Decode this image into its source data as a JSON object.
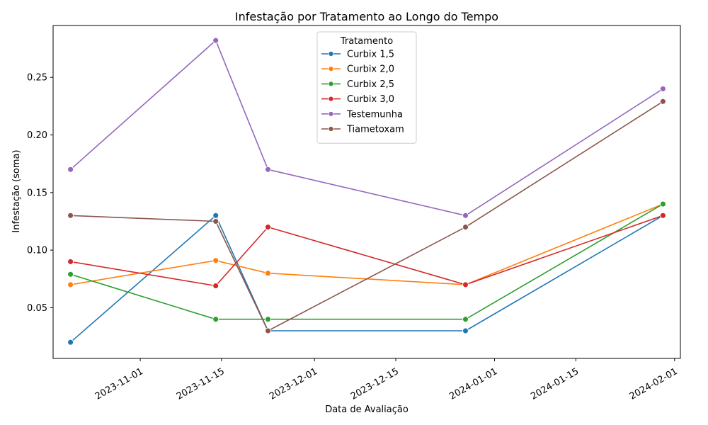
{
  "chart_data": {
    "type": "line",
    "title": "Infestação por Tratamento ao Longo do Tempo",
    "xlabel": "Data de Avaliação",
    "ylabel": "Infestação (soma)",
    "x": [
      "2023-10-20",
      "2023-11-14",
      "2023-11-23",
      "2023-12-27",
      "2024-01-30"
    ],
    "x_ticks": [
      "2023-11-01",
      "2023-11-15",
      "2023-12-01",
      "2023-12-15",
      "2024-01-01",
      "2024-01-15",
      "2024-02-01"
    ],
    "x_range": [
      "2023-10-17",
      "2024-02-02"
    ],
    "y_ticks": [
      0.05,
      0.1,
      0.15,
      0.2,
      0.25
    ],
    "ylim": [
      0.006,
      0.295
    ],
    "legend": {
      "title": "Tratamento",
      "position": "top-center"
    },
    "grid": false,
    "series": [
      {
        "name": "Curbix 1,5",
        "color": "#1f77b4",
        "values": [
          0.02,
          0.13,
          0.03,
          0.03,
          0.13
        ]
      },
      {
        "name": "Curbix 2,0",
        "color": "#ff7f0e",
        "values": [
          0.07,
          0.091,
          0.08,
          0.07,
          0.14
        ]
      },
      {
        "name": "Curbix 2,5",
        "color": "#2ca02c",
        "values": [
          0.079,
          0.04,
          0.04,
          0.04,
          0.14
        ]
      },
      {
        "name": "Curbix 3,0",
        "color": "#d62728",
        "values": [
          0.09,
          0.069,
          0.12,
          0.07,
          0.13
        ]
      },
      {
        "name": "Testemunha",
        "color": "#9467bd",
        "values": [
          0.17,
          0.282,
          0.17,
          0.13,
          0.24
        ]
      },
      {
        "name": "Tiametoxam",
        "color": "#8c564b",
        "values": [
          0.13,
          0.125,
          0.03,
          0.12,
          0.229
        ]
      }
    ]
  }
}
